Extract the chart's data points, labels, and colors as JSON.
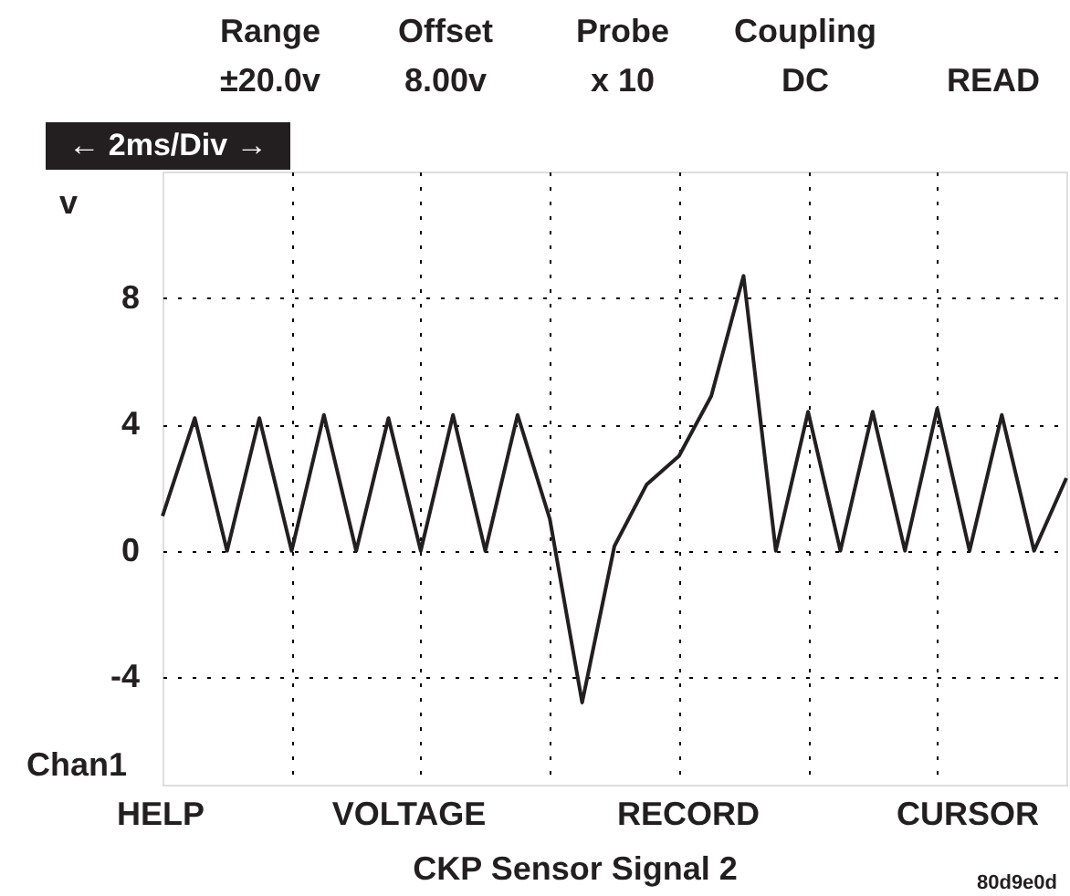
{
  "chart_data": {
    "type": "line",
    "title": "CKP Sensor Signal 2",
    "ylabel": "v",
    "categories": [
      null,
      null,
      null,
      null,
      null,
      null,
      null,
      null,
      null,
      null,
      null,
      null,
      null,
      null,
      null,
      null,
      null,
      null,
      null,
      null,
      null,
      null,
      null,
      null,
      null,
      null,
      null,
      null,
      null
    ],
    "values": [
      1.1,
      4.2,
      0,
      4.2,
      0,
      4.3,
      0,
      4.2,
      0,
      4.3,
      0,
      4.3,
      1.0,
      -4.8,
      0.15,
      2.1,
      3.0,
      4.9,
      8.7,
      0,
      4.4,
      0,
      4.4,
      0,
      4.5,
      0,
      4.3,
      0,
      2.3
    ],
    "color": "#231f20",
    "line_style": "solid",
    "ylim": [
      -7.4,
      12
    ],
    "yticks": [
      -4,
      0,
      4,
      8
    ],
    "grid": true,
    "tick_labels": "y",
    "annotations": [
      "Range",
      "±20.0v",
      "Offset",
      "8.00v",
      "Probe",
      "x 10",
      "Coupling",
      "DC",
      "READ",
      "← 2ms/Div →",
      "Chan1",
      "HELP",
      "VOLTAGE",
      "RECORD",
      "CURSOR",
      "80d9e0d"
    ]
  }
}
